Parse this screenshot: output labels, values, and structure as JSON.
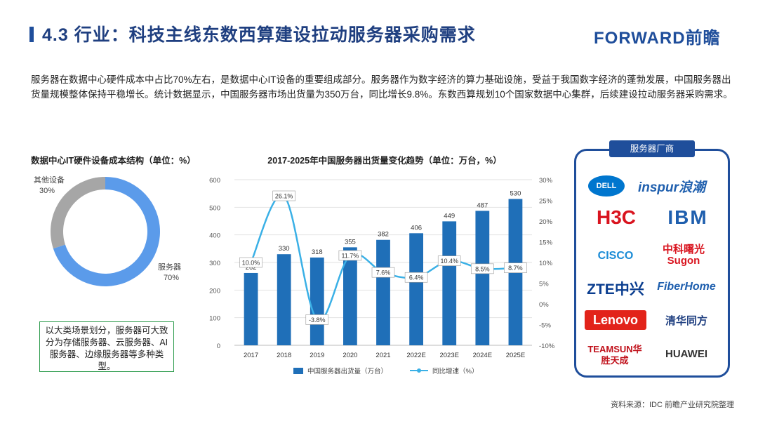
{
  "header": {
    "title": "4.3 行业：科技主线东数西算建设拉动服务器采购需求",
    "logo": "FORWARD前瞻"
  },
  "intro": "服务器在数据中心硬件成本中占比70%左右，是数据中心IT设备的重要组成部分。服务器作为数字经济的算力基础设施，受益于我国数字经济的蓬勃发展，中国服务器出货量规模整体保持平稳增长。统计数据显示，中国服务器市场出货量为350万台，同比增长9.8%。东数西算规划10个国家数据中心集群，后续建设拉动服务器采购需求。",
  "note": "以大类场景划分，服务器可大致分为存储服务器、云服务器、AI服务器、边缘服务器等多种类型。",
  "vendors": {
    "title": "服务器厂商",
    "names": [
      "DELL",
      "inspur浪潮",
      "H3C",
      "IBM",
      "CISCO",
      "中科曙光 Sugon",
      "ZTE中兴",
      "FiberHome",
      "Lenovo",
      "清华同方",
      "TEAMSUN华胜天成",
      "HUAWEI"
    ]
  },
  "source": "资料来源：IDC 前瞻产业研究院整理",
  "chart_data": [
    {
      "type": "pie",
      "title": "数据中心IT硬件设备成本结构（单位：%）",
      "slices": [
        {
          "label": "服务器",
          "value": 70,
          "value_label": "70%",
          "color": "#5b9bea"
        },
        {
          "label": "其他设备",
          "value": 30,
          "value_label": "30%",
          "color": "#a6a6a6"
        }
      ]
    },
    {
      "type": "bar",
      "title": "2017-2025年中国服务器出货量变化趋势（单位：万台，%）",
      "categories": [
        "2017",
        "2018",
        "2019",
        "2020",
        "2021",
        "2022E",
        "2023E",
        "2024E",
        "2025E"
      ],
      "series": [
        {
          "name": "中国服务器出货量（万台）",
          "type": "bar",
          "color": "#1f6fb8",
          "values": [
            262,
            330,
            318,
            355,
            382,
            406,
            449,
            487,
            530
          ],
          "labels": [
            "262",
            "330",
            "318",
            "355",
            "382",
            "406",
            "449",
            "487",
            "530"
          ]
        },
        {
          "name": "同比增速（%）",
          "type": "line",
          "color": "#3ab0e6",
          "values": [
            10.0,
            26.1,
            -3.8,
            11.7,
            7.6,
            6.4,
            10.4,
            8.5,
            8.7
          ],
          "labels": [
            "10.0%",
            "26.1%",
            "-3.8%",
            "11.7%",
            "7.6%",
            "6.4%",
            "10.4%",
            "8.5%",
            "8.7%"
          ]
        }
      ],
      "y_left": {
        "min": 0,
        "max": 600,
        "ticks": [
          "0",
          "100",
          "200",
          "300",
          "400",
          "500",
          "600"
        ]
      },
      "y_right": {
        "min": -10,
        "max": 30,
        "ticks": [
          "-10%",
          "-5%",
          "0%",
          "5%",
          "10%",
          "15%",
          "20%",
          "25%",
          "30%"
        ]
      },
      "legend": "bottom"
    }
  ]
}
